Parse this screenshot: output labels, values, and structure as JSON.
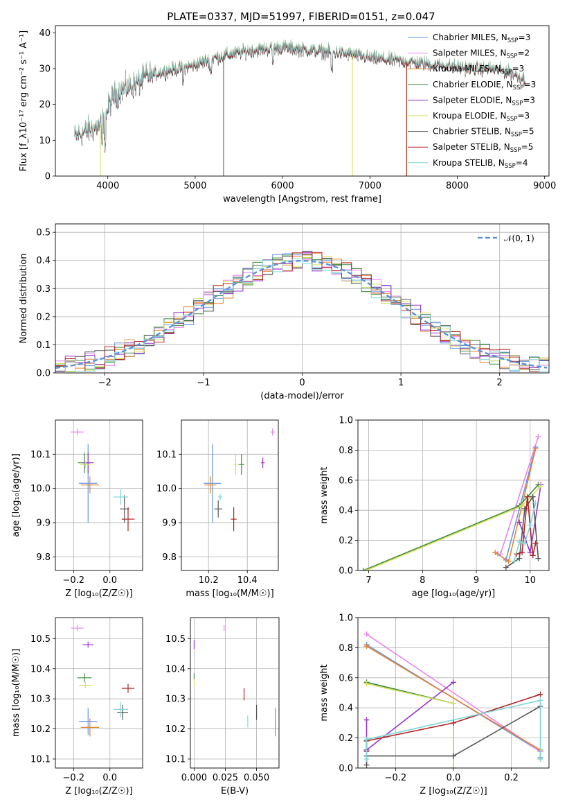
{
  "figure": {
    "title": "PLATE=0337, MJD=51997, FIBERID=0151, z=0.047",
    "colors": {
      "chabrier_miles": "#6495ed",
      "salpeter_miles": "#ee82ee",
      "kroupa_miles": "#e8832a",
      "chabrier_elodie": "#3a8a3a",
      "salpeter_elodie": "#9932cc",
      "kroupa_elodie": "#d4e15a",
      "chabrier_stelib": "#555555",
      "salpeter_stelib": "#b22222",
      "kroupa_stelib": "#7fd6d6"
    }
  },
  "chart_data": [
    {
      "id": "spectrum",
      "type": "line",
      "xlabel": "wavelength [Angstrom, rest frame]",
      "ylabel": "Flux [f_λ10⁻¹⁷ erg cm⁻² s⁻¹ A⁻¹]",
      "xlim": [
        3400,
        9050
      ],
      "ylim": [
        0,
        42
      ],
      "xticks": [
        "4000",
        "5000",
        "6000",
        "7000",
        "8000",
        "9000"
      ],
      "yticks": [
        "0",
        "10",
        "20",
        "30",
        "40"
      ],
      "legend_position": "top-right",
      "legend": [
        {
          "label": "Chabrier MILES, N",
          "sub": "SSP",
          "suffix": "=3"
        },
        {
          "label": "Salpeter MILES, N",
          "sub": "SSP",
          "suffix": "=2"
        },
        {
          "label": "Kroupa MILES, N",
          "sub": "SSP",
          "suffix": "=3"
        },
        {
          "label": "Chabrier ELODIE, N",
          "sub": "SSP",
          "suffix": "=3"
        },
        {
          "label": "Salpeter ELODIE, N",
          "sub": "SSP",
          "suffix": "=3"
        },
        {
          "label": "Kroupa ELODIE, N",
          "sub": "SSP",
          "suffix": "=3"
        },
        {
          "label": "Chabrier STELIB, N",
          "sub": "SSP",
          "suffix": "=5"
        },
        {
          "label": "Salpeter STELIB, N",
          "sub": "SSP",
          "suffix": "=5"
        },
        {
          "label": "Kroupa STELIB, N",
          "sub": "SSP",
          "suffix": "=4"
        }
      ],
      "continuum": [
        [
          3620,
          11
        ],
        [
          3700,
          12
        ],
        [
          3800,
          13
        ],
        [
          3900,
          14
        ],
        [
          3960,
          16
        ],
        [
          4050,
          22
        ],
        [
          4150,
          24
        ],
        [
          4250,
          25
        ],
        [
          4350,
          26
        ],
        [
          4450,
          28
        ],
        [
          4600,
          29
        ],
        [
          4800,
          30
        ],
        [
          5000,
          31
        ],
        [
          5200,
          33
        ],
        [
          5400,
          34
        ],
        [
          5600,
          35
        ],
        [
          5800,
          35.5
        ],
        [
          6000,
          36
        ],
        [
          6200,
          35.5
        ],
        [
          6400,
          35
        ],
        [
          6600,
          34.5
        ],
        [
          6800,
          34
        ],
        [
          7000,
          33
        ],
        [
          7200,
          32.5
        ],
        [
          7400,
          32
        ],
        [
          7600,
          31.5
        ],
        [
          7800,
          31
        ],
        [
          8000,
          30.5
        ],
        [
          8200,
          30
        ],
        [
          8400,
          30
        ],
        [
          8600,
          29
        ],
        [
          8780,
          27
        ]
      ]
    },
    {
      "id": "residuals",
      "type": "bar",
      "xlabel": "(data-model)/error",
      "ylabel": "Normed distribution",
      "xlim": [
        -2.5,
        2.5
      ],
      "ylim": [
        0,
        0.53
      ],
      "xticks": [
        "−2",
        "−1",
        "0",
        "1",
        "2"
      ],
      "yticks": [
        "0.0",
        "0.1",
        "0.2",
        "0.3",
        "0.4",
        "0.5"
      ],
      "legend_label": "𝒩(0, 1)",
      "legend_position": "top-right",
      "bin_width": 0.1
    },
    {
      "id": "z-age",
      "type": "scatter",
      "xlabel": "Z [log₁₀(Z/Z☉)]",
      "ylabel": "age  [log₁₀(age/yr)]",
      "xlim": [
        -0.3,
        0.18
      ],
      "ylim": [
        9.76,
        10.2
      ],
      "xticks": [
        "−0.2",
        "0.0"
      ],
      "yticks": [
        "9.8",
        "9.9",
        "10.0",
        "10.1"
      ],
      "points": [
        {
          "c": "chabrier_miles",
          "x": -0.12,
          "y": 10.015,
          "ex": 0.1,
          "ey": 0.23
        },
        {
          "c": "salpeter_miles",
          "x": -0.18,
          "y": 10.165,
          "ex": 0.07,
          "ey": 0.02
        },
        {
          "c": "kroupa_miles",
          "x": -0.11,
          "y": 10.01,
          "ex": 0.1,
          "ey": 0.05
        },
        {
          "c": "chabrier_elodie",
          "x": -0.14,
          "y": 10.075,
          "ex": 0.07,
          "ey": 0.06
        },
        {
          "c": "salpeter_elodie",
          "x": -0.12,
          "y": 10.075,
          "ex": 0.06,
          "ey": 0.06
        },
        {
          "c": "kroupa_elodie",
          "x": -0.135,
          "y": 10.07,
          "ex": 0.06,
          "ey": 0.02
        },
        {
          "c": "chabrier_stelib",
          "x": 0.08,
          "y": 9.94,
          "ex": 0.05,
          "ey": 0.08
        },
        {
          "c": "salpeter_stelib",
          "x": 0.1,
          "y": 9.91,
          "ex": 0.07,
          "ey": 0.07
        },
        {
          "c": "kroupa_stelib",
          "x": 0.06,
          "y": 9.975,
          "ex": 0.08,
          "ey": 0.045
        }
      ]
    },
    {
      "id": "mass-age",
      "type": "scatter",
      "xlabel": "mass [log₁₀(M/M☉)]",
      "ylabel": "",
      "xlim": [
        10.06,
        10.56
      ],
      "ylim": [
        9.76,
        10.2
      ],
      "xticks": [
        "10.2",
        "10.4"
      ],
      "yticks": [
        "9.8",
        "9.9",
        "10.0",
        "10.1"
      ],
      "points": [
        {
          "c": "chabrier_miles",
          "x": 10.22,
          "y": 10.015,
          "ex": 0.09,
          "ey": 0.23
        },
        {
          "c": "salpeter_miles",
          "x": 10.53,
          "y": 10.165,
          "ex": 0.02,
          "ey": 0.02
        },
        {
          "c": "kroupa_miles",
          "x": 10.21,
          "y": 10.01,
          "ex": 0.06,
          "ey": 0.05
        },
        {
          "c": "chabrier_elodie",
          "x": 10.37,
          "y": 10.07,
          "ex": 0.03,
          "ey": 0.06
        },
        {
          "c": "salpeter_elodie",
          "x": 10.48,
          "y": 10.075,
          "ex": 0.02,
          "ey": 0.03
        },
        {
          "c": "kroupa_elodie",
          "x": 10.34,
          "y": 10.07,
          "ex": 0.02,
          "ey": 0.06
        },
        {
          "c": "chabrier_stelib",
          "x": 10.25,
          "y": 9.94,
          "ex": 0.04,
          "ey": 0.05
        },
        {
          "c": "salpeter_stelib",
          "x": 10.33,
          "y": 9.91,
          "ex": 0.03,
          "ey": 0.07
        },
        {
          "c": "kroupa_stelib",
          "x": 10.26,
          "y": 9.975,
          "ex": 0.02,
          "ey": 0.02
        }
      ]
    },
    {
      "id": "age-weight",
      "type": "line",
      "xlabel": "age  [log₁₀(age/yr)]",
      "ylabel": "mass weight",
      "xlim": [
        6.8,
        10.35
      ],
      "ylim": [
        0,
        1.0
      ],
      "xticks": [
        "7",
        "8",
        "9",
        "10"
      ],
      "yticks": [
        "0.0",
        "0.2",
        "0.4",
        "0.6",
        "0.8",
        "1.0"
      ],
      "series": [
        {
          "c": "chabrier_miles",
          "x": [
            9.4,
            9.55,
            10.1
          ],
          "y": [
            0.11,
            0.07,
            0.82
          ]
        },
        {
          "c": "salpeter_miles",
          "x": [
            9.45,
            10.15
          ],
          "y": [
            0.11,
            0.89
          ]
        },
        {
          "c": "kroupa_miles",
          "x": [
            9.35,
            9.6,
            10.1
          ],
          "y": [
            0.12,
            0.06,
            0.81
          ]
        },
        {
          "c": "chabrier_elodie",
          "x": [
            6.9,
            9.8,
            10.15
          ],
          "y": [
            0.0,
            0.43,
            0.57
          ]
        },
        {
          "c": "salpeter_elodie",
          "x": [
            9.8,
            10.0,
            10.2
          ],
          "y": [
            0.32,
            0.12,
            0.57
          ]
        },
        {
          "c": "kroupa_elodie",
          "x": [
            6.95,
            9.85,
            10.2
          ],
          "y": [
            0.0,
            0.43,
            0.56
          ]
        },
        {
          "c": "chabrier_stelib",
          "x": [
            9.55,
            9.8,
            9.9,
            10.05,
            10.15
          ],
          "y": [
            0.02,
            0.08,
            0.41,
            0.49,
            0.08
          ]
        },
        {
          "c": "salpeter_stelib",
          "x": [
            9.75,
            9.85,
            9.95,
            10.05,
            10.1
          ],
          "y": [
            0.11,
            0.12,
            0.49,
            0.1,
            0.18
          ]
        },
        {
          "c": "kroupa_stelib",
          "x": [
            9.7,
            9.8,
            9.9,
            10.0,
            10.1
          ],
          "y": [
            0.06,
            0.19,
            0.18,
            0.3,
            0.45
          ]
        }
      ]
    },
    {
      "id": "z-mass",
      "type": "scatter",
      "xlabel": "Z [log₁₀(Z/Z☉)]",
      "ylabel": "mass [log₁₀(M/M☉)]",
      "xlim": [
        -0.3,
        0.18
      ],
      "ylim": [
        10.07,
        10.57
      ],
      "xticks": [
        "−0.2",
        "0.0"
      ],
      "yticks": [
        "10.1",
        "10.2",
        "10.3",
        "10.4",
        "10.5"
      ],
      "points": [
        {
          "c": "chabrier_miles",
          "x": -0.12,
          "y": 10.225,
          "ex": 0.1,
          "ey": 0.09
        },
        {
          "c": "salpeter_miles",
          "x": -0.18,
          "y": 10.535,
          "ex": 0.07,
          "ey": 0.02
        },
        {
          "c": "kroupa_miles",
          "x": -0.11,
          "y": 10.205,
          "ex": 0.1,
          "ey": 0.06
        },
        {
          "c": "chabrier_elodie",
          "x": -0.14,
          "y": 10.37,
          "ex": 0.08,
          "ey": 0.03
        },
        {
          "c": "salpeter_elodie",
          "x": -0.12,
          "y": 10.48,
          "ex": 0.06,
          "ey": 0.02
        },
        {
          "c": "kroupa_elodie",
          "x": -0.135,
          "y": 10.345,
          "ex": 0.07,
          "ey": 0.02
        },
        {
          "c": "chabrier_stelib",
          "x": 0.07,
          "y": 10.255,
          "ex": 0.06,
          "ey": 0.05
        },
        {
          "c": "salpeter_stelib",
          "x": 0.1,
          "y": 10.335,
          "ex": 0.07,
          "ey": 0.03
        },
        {
          "c": "kroupa_stelib",
          "x": 0.06,
          "y": 10.265,
          "ex": 0.08,
          "ey": 0.05
        }
      ]
    },
    {
      "id": "ebv-mass",
      "type": "scatter",
      "xlabel": "E(B-V)",
      "ylabel": "",
      "xlim": [
        -0.003,
        0.068
      ],
      "ylim": [
        10.07,
        10.57
      ],
      "xticks": [
        "0.000",
        "0.025",
        "0.050"
      ],
      "yticks": [
        "10.1",
        "10.2",
        "10.3",
        "10.4",
        "10.5"
      ],
      "points": [
        {
          "c": "chabrier_miles",
          "x": 0.065,
          "y": 10.225,
          "ex": 0,
          "ey": 0.09
        },
        {
          "c": "salpeter_miles",
          "x": 0.024,
          "y": 10.535,
          "ex": 0,
          "ey": 0.02
        },
        {
          "c": "kroupa_miles",
          "x": 0.065,
          "y": 10.205,
          "ex": 0,
          "ey": 0.06
        },
        {
          "c": "chabrier_elodie",
          "x": 0.0,
          "y": 10.375,
          "ex": 0,
          "ey": 0.02
        },
        {
          "c": "salpeter_elodie",
          "x": 0.0,
          "y": 10.48,
          "ex": 0,
          "ey": 0.03
        },
        {
          "c": "kroupa_elodie",
          "x": 0.0,
          "y": 10.355,
          "ex": 0,
          "ey": 0.02
        },
        {
          "c": "chabrier_stelib",
          "x": 0.05,
          "y": 10.255,
          "ex": 0,
          "ey": 0.05
        },
        {
          "c": "salpeter_stelib",
          "x": 0.04,
          "y": 10.315,
          "ex": 0,
          "ey": 0.04
        },
        {
          "c": "kroupa_stelib",
          "x": 0.043,
          "y": 10.225,
          "ex": 0,
          "ey": 0.04
        }
      ]
    },
    {
      "id": "z-weight",
      "type": "line",
      "xlabel": "Z [log₁₀(Z/Z☉)]",
      "ylabel": "mass weight",
      "xlim": [
        -0.33,
        0.33
      ],
      "ylim": [
        0,
        1.0
      ],
      "xticks": [
        "−0.2",
        "0.0",
        "0.2"
      ],
      "yticks": [
        "0.0",
        "0.2",
        "0.4",
        "0.6",
        "0.8",
        "1.0"
      ],
      "series": [
        {
          "c": "chabrier_miles",
          "x": [
            -0.3,
            -0.3,
            0.3,
            0.3
          ],
          "y": [
            0.82,
            0.82,
            0.11,
            0.07
          ]
        },
        {
          "c": "salpeter_miles",
          "x": [
            -0.3,
            0.3,
            0.3
          ],
          "y": [
            0.89,
            0.11,
            0.11
          ]
        },
        {
          "c": "kroupa_miles",
          "x": [
            -0.3,
            0.3,
            0.3
          ],
          "y": [
            0.81,
            0.12,
            0.06
          ]
        },
        {
          "c": "chabrier_elodie",
          "x": [
            -0.3,
            0.0,
            0.0
          ],
          "y": [
            0.57,
            0.43,
            0.0
          ]
        },
        {
          "c": "salpeter_elodie",
          "x": [
            -0.3,
            -0.3,
            0.0
          ],
          "y": [
            0.32,
            0.12,
            0.57
          ]
        },
        {
          "c": "kroupa_elodie",
          "x": [
            -0.3,
            0.0,
            0.0
          ],
          "y": [
            0.56,
            0.43,
            0.0
          ]
        },
        {
          "c": "chabrier_stelib",
          "x": [
            -0.3,
            -0.3,
            0.0,
            0.3
          ],
          "y": [
            0.02,
            0.08,
            0.08,
            0.41
          ]
        },
        {
          "c": "salpeter_stelib",
          "x": [
            -0.3,
            -0.3,
            0.0,
            0.3
          ],
          "y": [
            0.11,
            0.18,
            0.3,
            0.49
          ]
        },
        {
          "c": "kroupa_stelib",
          "x": [
            -0.3,
            -0.3,
            0.3,
            0.3
          ],
          "y": [
            0.06,
            0.19,
            0.45,
            0.06
          ]
        }
      ]
    }
  ]
}
